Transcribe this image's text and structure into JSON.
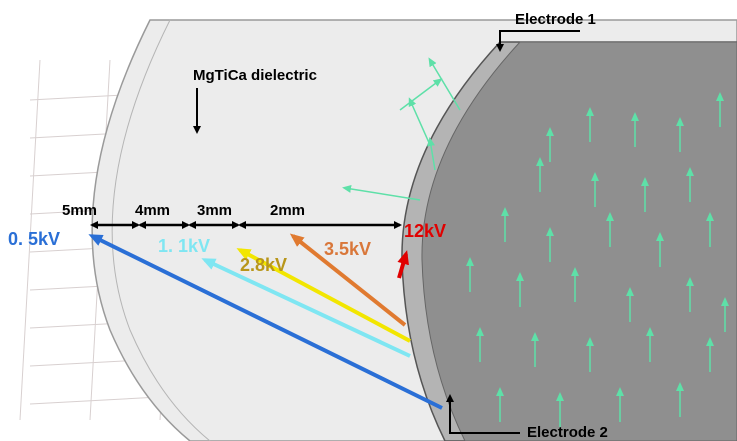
{
  "labels": {
    "electrode_1": "Electrode 1",
    "dielectric": "MgTiCa dielectric",
    "electrode_2": "Electrode 2"
  },
  "distances": [
    "5mm",
    "4mm",
    "3mm",
    "2mm"
  ],
  "voltages": [
    "0. 5kV",
    "1. 1kV",
    "2.8kV",
    "3.5kV",
    "12kV"
  ]
}
